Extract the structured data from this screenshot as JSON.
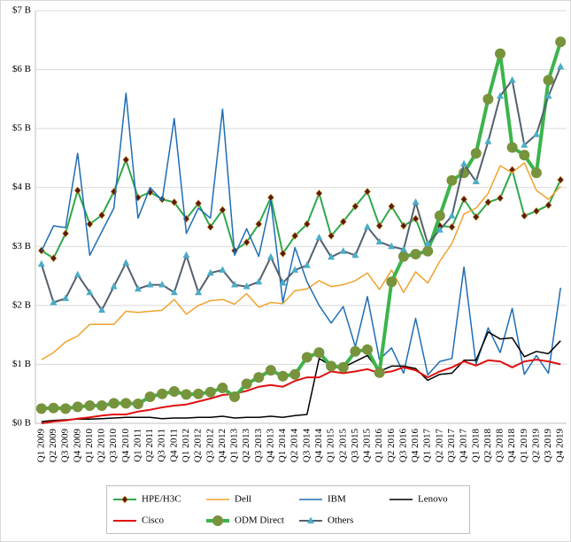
{
  "chart_data": {
    "type": "line",
    "categories": [
      "Q1 2009",
      "Q2 2009",
      "Q3 2009",
      "Q4 2009",
      "Q1 2010",
      "Q2 2010",
      "Q3 2010",
      "Q4 2010",
      "Q1 2011",
      "Q2 2011",
      "Q3 2011",
      "Q4 2011",
      "Q1 2012",
      "Q2 2012",
      "Q3 2012",
      "Q4 2012",
      "Q1 2013",
      "Q2 2013",
      "Q3 2013",
      "Q4 2013",
      "Q1 2014",
      "Q2 2014",
      "Q3 2014",
      "Q4 2014",
      "Q1 2015",
      "Q2 2015",
      "Q3 2015",
      "Q4 2015",
      "Q1 2016",
      "Q2 2016",
      "Q3 2016",
      "Q4 2016",
      "Q1 2017",
      "Q2 2017",
      "Q3 2017",
      "Q4 2017",
      "Q1 2018",
      "Q2 2018",
      "Q3 2018",
      "Q4 2018",
      "Q1 2019",
      "Q2 2019",
      "Q3 2019",
      "Q4 2019"
    ],
    "ylim": [
      0,
      7
    ],
    "yticks": [
      {
        "value": 0,
        "label": "$0 B"
      },
      {
        "value": 1,
        "label": "$1 B"
      },
      {
        "value": 2,
        "label": "$2 B"
      },
      {
        "value": 3,
        "label": "$3 B"
      },
      {
        "value": 4,
        "label": "$4 B"
      },
      {
        "value": 5,
        "label": "$5 B"
      },
      {
        "value": 6,
        "label": "$6 B"
      },
      {
        "value": 7,
        "label": "$7 B"
      }
    ],
    "grid": true,
    "legend": "bottom",
    "series": [
      {
        "name": "HPE/H3C",
        "color": "#2ea84a",
        "width": 2,
        "marker": "diamond",
        "marker_color": "#5a1a10",
        "values": [
          2.93,
          2.8,
          3.22,
          3.95,
          3.38,
          3.53,
          3.93,
          4.47,
          3.83,
          3.92,
          3.8,
          3.75,
          3.47,
          3.73,
          3.33,
          3.62,
          2.93,
          3.07,
          3.38,
          3.83,
          2.88,
          3.18,
          3.38,
          3.9,
          3.18,
          3.42,
          3.68,
          3.93,
          3.35,
          3.68,
          3.35,
          3.47,
          2.93,
          3.35,
          3.33,
          3.8,
          3.5,
          3.75,
          3.82,
          4.3,
          3.52,
          3.6,
          3.7,
          4.13
        ]
      },
      {
        "name": "Dell",
        "color": "#f0a22e",
        "width": 1.5,
        "marker": "none",
        "values": [
          1.08,
          1.2,
          1.38,
          1.48,
          1.68,
          1.68,
          1.68,
          1.9,
          1.88,
          1.9,
          1.92,
          2.1,
          1.85,
          2.0,
          2.08,
          2.1,
          2.02,
          2.2,
          1.97,
          2.05,
          2.03,
          2.25,
          2.28,
          2.42,
          2.32,
          2.35,
          2.42,
          2.55,
          2.27,
          2.6,
          2.22,
          2.57,
          2.38,
          2.75,
          3.05,
          3.55,
          3.65,
          3.9,
          4.37,
          4.25,
          4.42,
          3.95,
          3.8,
          4.02
        ]
      },
      {
        "name": "IBM",
        "color": "#1f6db5",
        "width": 1.5,
        "marker": "none",
        "values": [
          2.92,
          3.35,
          3.32,
          4.58,
          2.85,
          3.25,
          3.65,
          5.6,
          3.48,
          4.0,
          3.78,
          5.17,
          3.22,
          3.65,
          3.48,
          5.33,
          2.85,
          3.3,
          2.83,
          3.78,
          2.05,
          2.98,
          2.4,
          2.0,
          1.7,
          1.98,
          1.3,
          2.15,
          1.08,
          1.28,
          0.85,
          1.78,
          0.82,
          1.05,
          1.1,
          2.65,
          1.0,
          1.62,
          1.2,
          1.95,
          0.83,
          1.15,
          0.85,
          2.3
        ]
      },
      {
        "name": "Lenovo",
        "color": "#000000",
        "width": 1.5,
        "marker": "none",
        "values": [
          0.03,
          0.05,
          0.06,
          0.07,
          0.07,
          0.08,
          0.09,
          0.1,
          0.1,
          0.1,
          0.08,
          0.09,
          0.09,
          0.1,
          0.1,
          0.12,
          0.09,
          0.1,
          0.1,
          0.12,
          0.1,
          0.13,
          0.15,
          1.1,
          0.98,
          0.95,
          1.05,
          1.15,
          0.88,
          0.97,
          0.97,
          0.93,
          0.73,
          0.83,
          0.85,
          1.07,
          1.07,
          1.55,
          1.43,
          1.45,
          1.13,
          1.22,
          1.18,
          1.4
        ]
      },
      {
        "name": "Cisco",
        "color": "#e01010",
        "width": 2,
        "marker": "none",
        "values": [
          0.0,
          0.03,
          0.05,
          0.08,
          0.1,
          0.13,
          0.15,
          0.15,
          0.2,
          0.23,
          0.27,
          0.3,
          0.32,
          0.37,
          0.42,
          0.48,
          0.5,
          0.55,
          0.62,
          0.65,
          0.62,
          0.72,
          0.78,
          0.78,
          0.88,
          0.85,
          0.88,
          0.92,
          0.85,
          0.88,
          0.95,
          0.9,
          0.78,
          0.88,
          0.95,
          1.05,
          0.98,
          1.07,
          1.05,
          0.95,
          1.05,
          1.08,
          1.05,
          1.0
        ]
      },
      {
        "name": "ODM Direct",
        "color": "#3cb44b",
        "width": 4,
        "marker": "circle",
        "marker_color": "#77933c",
        "values": [
          0.25,
          0.26,
          0.25,
          0.28,
          0.3,
          0.3,
          0.34,
          0.34,
          0.33,
          0.45,
          0.5,
          0.54,
          0.49,
          0.5,
          0.53,
          0.6,
          0.45,
          0.67,
          0.78,
          0.9,
          0.8,
          0.83,
          1.12,
          1.2,
          0.97,
          0.95,
          1.22,
          1.25,
          0.86,
          2.4,
          2.83,
          2.87,
          2.92,
          3.52,
          4.12,
          4.25,
          4.58,
          5.5,
          6.27,
          4.68,
          4.55,
          4.25,
          5.82,
          6.47
        ]
      },
      {
        "name": "Others",
        "color": "#55606e",
        "width": 2,
        "marker": "triangle",
        "marker_color": "#4bacc6",
        "values": [
          2.7,
          2.05,
          2.12,
          2.52,
          2.22,
          1.92,
          2.32,
          2.72,
          2.28,
          2.35,
          2.35,
          2.22,
          2.85,
          2.22,
          2.55,
          2.6,
          2.35,
          2.32,
          2.4,
          2.82,
          2.38,
          2.6,
          2.68,
          3.15,
          2.82,
          2.92,
          2.85,
          3.33,
          3.08,
          3.0,
          2.95,
          3.75,
          3.05,
          3.28,
          3.52,
          4.4,
          4.1,
          4.78,
          5.55,
          5.82,
          4.72,
          4.9,
          5.55,
          6.05
        ]
      }
    ]
  }
}
